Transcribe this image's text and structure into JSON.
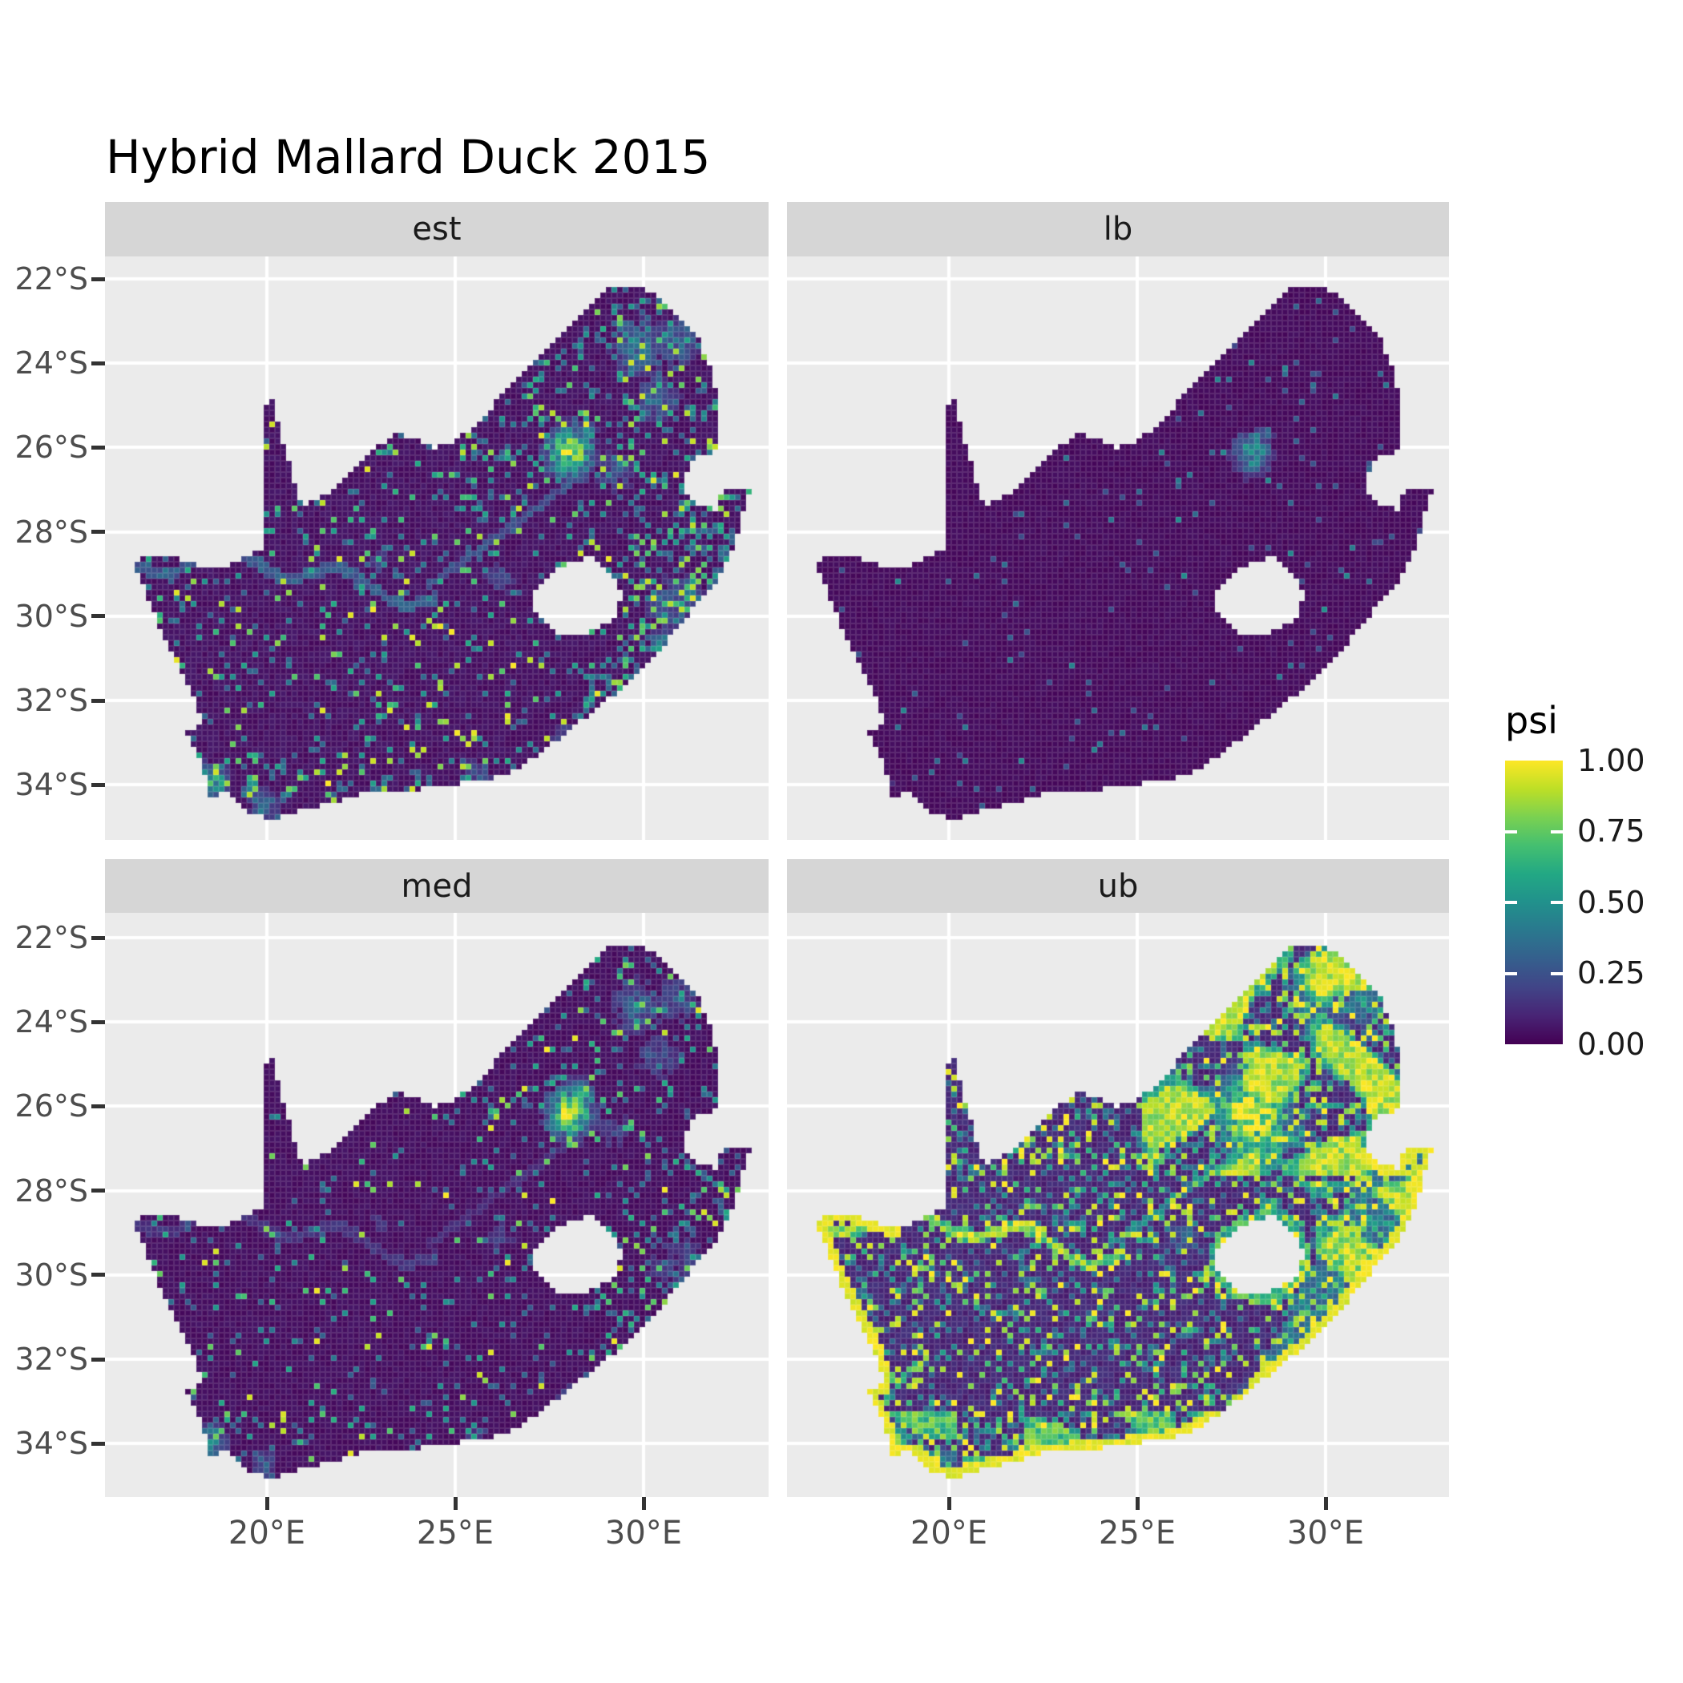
{
  "title": "Hybrid Mallard Duck 2015",
  "facets": [
    {
      "label": "est"
    },
    {
      "label": "lb"
    },
    {
      "label": "med"
    },
    {
      "label": "ub"
    }
  ],
  "axes": {
    "y_ticks": [
      "22°S",
      "24°S",
      "26°S",
      "28°S",
      "30°S",
      "32°S",
      "34°S"
    ],
    "x_ticks": [
      "20°E",
      "25°E",
      "30°E"
    ]
  },
  "legend": {
    "title": "psi",
    "labels": [
      "1.00",
      "0.75",
      "0.50",
      "0.25",
      "0.00"
    ]
  },
  "colors": {
    "background": "#ffffff",
    "panel": "#ebebeb",
    "strip": "#d6d6d6",
    "gridline": "#ffffff",
    "axis_text": "#4d4d4d",
    "tick_mark": "#333333",
    "title_text": "#000000",
    "cell_border": "rgba(255,255,255,0.13)"
  },
  "chart_data": {
    "type": "heatmap",
    "subtype": "faceted-raster-map",
    "region": "South Africa",
    "variable": "psi",
    "title": "Hybrid Mallard Duck 2015",
    "facet_labels": [
      "est",
      "lb",
      "med",
      "ub"
    ],
    "lon_ticks": [
      20,
      25,
      30
    ],
    "lat_ticks": [
      22,
      24,
      26,
      28,
      30,
      32,
      34
    ],
    "lon_range": [
      16.2,
      33.3
    ],
    "lat_range": [
      21.8,
      35.0
    ],
    "color_scale": {
      "name": "viridis",
      "domain": [
        0,
        1
      ],
      "breaks": [
        0.0,
        0.25,
        0.5,
        0.75,
        1.0
      ],
      "stops": [
        [
          0.0,
          "#440154"
        ],
        [
          0.1,
          "#482475"
        ],
        [
          0.2,
          "#414487"
        ],
        [
          0.3,
          "#355f8d"
        ],
        [
          0.4,
          "#2a788e"
        ],
        [
          0.5,
          "#21918c"
        ],
        [
          0.6,
          "#22a884"
        ],
        [
          0.7,
          "#44bf70"
        ],
        [
          0.8,
          "#7ad151"
        ],
        [
          0.9,
          "#bddf26"
        ],
        [
          1.0,
          "#fde725"
        ]
      ]
    },
    "outline": [
      [
        16.45,
        28.7
      ],
      [
        17.2,
        28.52
      ],
      [
        17.95,
        28.75
      ],
      [
        18.7,
        28.9
      ],
      [
        19.4,
        28.6
      ],
      [
        19.95,
        28.45
      ],
      [
        19.98,
        27.2
      ],
      [
        19.99,
        25.9
      ],
      [
        20.0,
        24.78
      ],
      [
        20.15,
        24.9
      ],
      [
        20.45,
        25.9
      ],
      [
        20.75,
        26.9
      ],
      [
        20.95,
        27.45
      ],
      [
        21.7,
        27.05
      ],
      [
        22.3,
        26.5
      ],
      [
        22.8,
        26.12
      ],
      [
        23.35,
        25.68
      ],
      [
        23.95,
        25.8
      ],
      [
        24.5,
        26.02
      ],
      [
        25.05,
        25.82
      ],
      [
        25.6,
        25.45
      ],
      [
        26.1,
        24.92
      ],
      [
        26.7,
        24.38
      ],
      [
        27.3,
        23.78
      ],
      [
        27.95,
        23.2
      ],
      [
        28.55,
        22.62
      ],
      [
        29.15,
        22.22
      ],
      [
        29.95,
        22.17
      ],
      [
        30.55,
        22.55
      ],
      [
        31.05,
        23.0
      ],
      [
        31.5,
        23.5
      ],
      [
        31.85,
        24.2
      ],
      [
        31.95,
        24.8
      ],
      [
        32.0,
        25.55
      ],
      [
        32.02,
        26.1
      ],
      [
        31.4,
        26.2
      ],
      [
        31.12,
        26.62
      ],
      [
        31.18,
        27.18
      ],
      [
        31.55,
        27.42
      ],
      [
        31.98,
        27.48
      ],
      [
        32.1,
        27.05
      ],
      [
        32.85,
        26.95
      ],
      [
        32.62,
        27.7
      ],
      [
        32.42,
        28.3
      ],
      [
        32.2,
        28.8
      ],
      [
        31.95,
        29.2
      ],
      [
        31.45,
        29.72
      ],
      [
        31.05,
        30.1
      ],
      [
        30.55,
        30.72
      ],
      [
        30.05,
        31.22
      ],
      [
        29.45,
        31.72
      ],
      [
        28.75,
        32.2
      ],
      [
        28.05,
        32.72
      ],
      [
        27.35,
        33.18
      ],
      [
        26.6,
        33.68
      ],
      [
        25.85,
        33.9
      ],
      [
        25.0,
        34.0
      ],
      [
        24.2,
        34.1
      ],
      [
        23.35,
        34.15
      ],
      [
        22.55,
        34.2
      ],
      [
        21.75,
        34.45
      ],
      [
        20.95,
        34.6
      ],
      [
        20.1,
        34.83
      ],
      [
        19.55,
        34.68
      ],
      [
        19.25,
        34.42
      ],
      [
        18.9,
        34.2
      ],
      [
        18.52,
        34.3
      ],
      [
        18.4,
        33.95
      ],
      [
        18.28,
        33.55
      ],
      [
        18.05,
        33.1
      ],
      [
        17.88,
        32.78
      ],
      [
        18.28,
        32.6
      ],
      [
        18.12,
        32.0
      ],
      [
        17.72,
        31.3
      ],
      [
        17.3,
        30.55
      ],
      [
        16.98,
        29.85
      ],
      [
        16.68,
        29.2
      ]
    ],
    "lesotho_hole": [
      [
        27.02,
        29.58
      ],
      [
        27.33,
        29.15
      ],
      [
        27.72,
        28.9
      ],
      [
        28.12,
        28.72
      ],
      [
        28.58,
        28.6
      ],
      [
        29.08,
        28.92
      ],
      [
        29.32,
        29.25
      ],
      [
        29.44,
        29.58
      ],
      [
        29.2,
        30.05
      ],
      [
        28.82,
        30.32
      ],
      [
        28.28,
        30.5
      ],
      [
        27.78,
        30.42
      ],
      [
        27.38,
        30.12
      ],
      [
        27.12,
        29.86
      ]
    ],
    "hotspots": [
      {
        "x": 28.05,
        "y": 26.15,
        "s": 0.4,
        "a": 1.0,
        "g": 1
      },
      {
        "x": 28.35,
        "y": 25.75,
        "s": 0.28,
        "a": 0.5,
        "g": 1
      },
      {
        "x": 29.85,
        "y": 23.65,
        "s": 0.5,
        "a": 0.5
      },
      {
        "x": 30.9,
        "y": 23.5,
        "s": 0.45,
        "a": 0.45
      },
      {
        "x": 30.35,
        "y": 24.85,
        "s": 0.45,
        "a": 0.38
      },
      {
        "x": 29.25,
        "y": 26.6,
        "s": 0.4,
        "a": 0.33
      },
      {
        "x": 30.9,
        "y": 29.8,
        "s": 0.7,
        "a": 0.32
      },
      {
        "x": 18.55,
        "y": 33.95,
        "s": 0.3,
        "a": 0.8,
        "c": 1
      },
      {
        "x": 19.9,
        "y": 34.5,
        "s": 0.28,
        "a": 0.5,
        "c": 1
      },
      {
        "x": 25.6,
        "y": 33.85,
        "s": 0.33,
        "a": 0.35
      },
      {
        "x": 28.0,
        "y": 32.95,
        "s": 0.38,
        "a": 0.3
      },
      {
        "x": 26.2,
        "y": 29.1,
        "s": 0.33,
        "a": 0.3
      },
      {
        "x": 23.0,
        "y": 28.75,
        "s": 0.3,
        "a": 0.25
      }
    ],
    "facets": [
      {
        "name": "est",
        "seed": 11,
        "style": {
          "base": 0.02,
          "jit": 0.05,
          "bumpG": 1.0,
          "bumpO": 0.75,
          "bumpC": 0.8,
          "sigScale": 1.0,
          "sp": 0.1,
          "spA": 0.5,
          "zNE": 0.1,
          "zE": 0.2,
          "zK": 0.12,
          "zS": 0.1,
          "yD": 0.01,
          "river": 0.35,
          "vaal": 0.3,
          "patches": 0,
          "rim": 0
        }
      },
      {
        "name": "lb",
        "seed": 22,
        "style": {
          "base": 0.012,
          "jit": 0.03,
          "bumpG": 0.55,
          "bumpO": 0.06,
          "bumpC": 0.12,
          "sigScale": 0.9,
          "sp": 0.02,
          "spA": 0.22,
          "zNE": 0.02,
          "zE": 0.03,
          "zK": 0.02,
          "zS": 0.015,
          "yD": 0.0,
          "river": 0,
          "vaal": 0,
          "patches": 0,
          "rim": 0
        }
      },
      {
        "name": "med",
        "seed": 33,
        "style": {
          "base": 0.018,
          "jit": 0.04,
          "bumpG": 0.95,
          "bumpO": 0.6,
          "bumpC": 0.6,
          "sigScale": 1.0,
          "sp": 0.06,
          "spA": 0.42,
          "zNE": 0.07,
          "zE": 0.14,
          "zK": 0.09,
          "zS": 0.07,
          "yD": 0.008,
          "river": 0.18,
          "vaal": 0.15,
          "patches": 0,
          "rim": 0
        }
      },
      {
        "name": "ub",
        "seed": 44,
        "style": {
          "base": 0.07,
          "jit": 0.08,
          "bumpG": 1.15,
          "bumpO": 1.0,
          "bumpC": 0.95,
          "sigScale": 1.6,
          "sp": 0.26,
          "spA": 0.6,
          "zNE": 0.15,
          "zE": 0.25,
          "zK": 0.18,
          "zS": 0.15,
          "yD": 0.05,
          "river": 1.0,
          "vaal": 0.55,
          "patches": 1,
          "rim": 1
        }
      }
    ]
  }
}
